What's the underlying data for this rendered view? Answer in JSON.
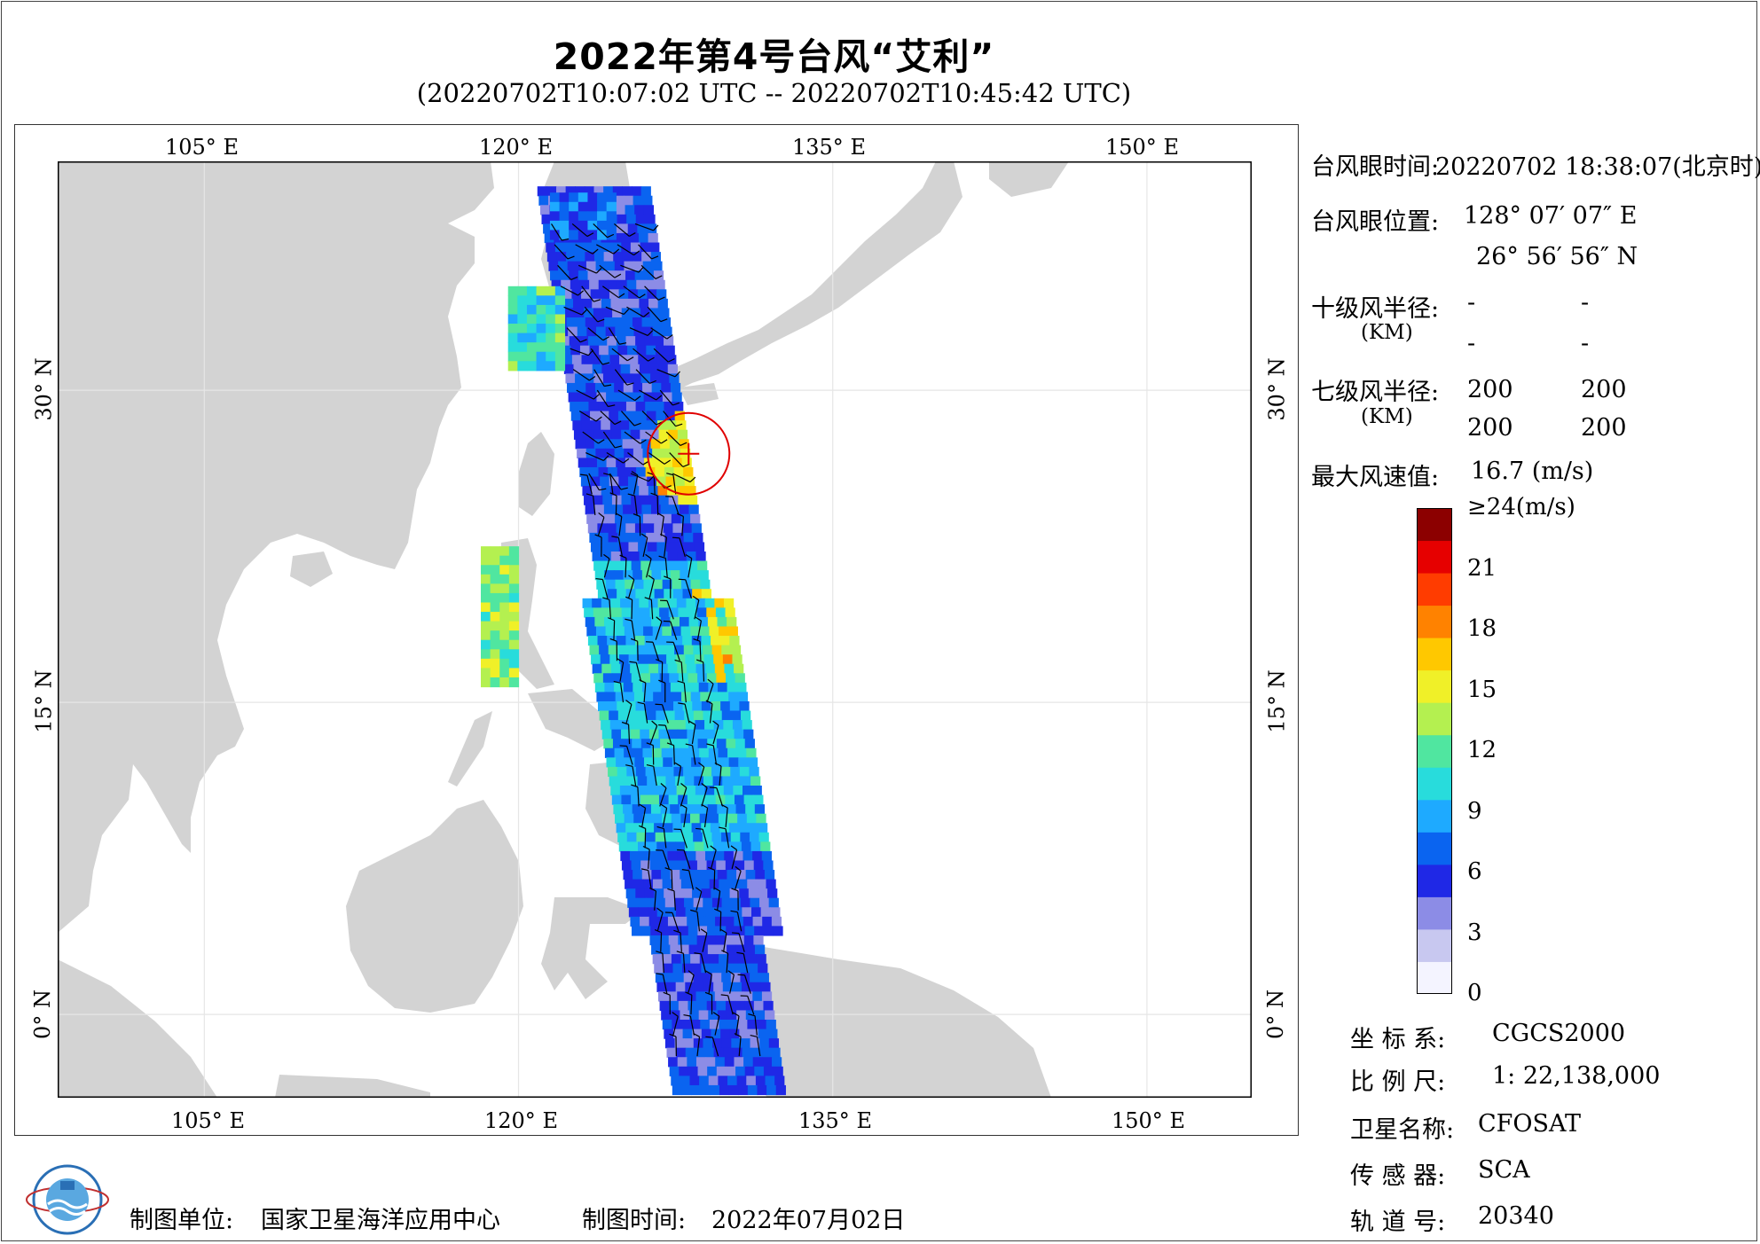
{
  "title": "2022年第4号台风“艾利”",
  "subtitle": "(20220702T10:07:02 UTC -- 20220702T10:45:42 UTC)",
  "map": {
    "lon_ticks": [
      "105° E",
      "120° E",
      "135° E",
      "150° E"
    ],
    "lat_ticks": [
      "30° N",
      "15° N",
      "0° N"
    ],
    "lon_range": [
      98,
      155
    ],
    "lat_range": [
      -4,
      41
    ],
    "colors": {
      "land": "#d3d3d3",
      "ocean": "#ffffff",
      "typhoon_marker": "#e00000"
    },
    "typhoon_eye": {
      "lon": 128.12,
      "lat": 26.95
    }
  },
  "info": {
    "eye_time_label": "台风眼时间:",
    "eye_time_value": "20220702 18:38:07(北京时)",
    "eye_pos_label": "台风眼位置:",
    "eye_lon": "128° 07′ 07″ E",
    "eye_lat": "26° 56′ 56″ N",
    "r10_label": "十级风半径:",
    "r10_unit": "(KM)",
    "r10_values": [
      "-",
      "-",
      "-",
      "-"
    ],
    "r7_label": "七级风半径:",
    "r7_unit": "(KM)",
    "r7_values": [
      "200",
      "200",
      "200",
      "200"
    ],
    "max_wind_label": "最大风速值:",
    "max_wind_value": "16.7  (m/s)"
  },
  "colorbar": {
    "labels": [
      "≥24(m/s)",
      "21",
      "18",
      "15",
      "12",
      "9",
      "6",
      "3",
      "0"
    ],
    "values": [
      24,
      21,
      18,
      15,
      12,
      9,
      6,
      3,
      0
    ],
    "colors": [
      "#f4f4ff",
      "#c8c8f0",
      "#8c8ce6",
      "#1f28e6",
      "#0a64f0",
      "#1eaaff",
      "#28dcdc",
      "#50e6a0",
      "#b4f050",
      "#f0f028",
      "#ffc800",
      "#ff8200",
      "#ff3c00",
      "#e60000",
      "#8c0000"
    ]
  },
  "meta": {
    "crs_label": "坐 标 系:",
    "crs_value": "CGCS2000",
    "scale_label": "比 例 尺:",
    "scale_value": "1: 22,138,000",
    "sat_label": "卫星名称:",
    "sat_value": "CFOSAT",
    "sensor_label": "传 感 器:",
    "sensor_value": "SCA",
    "orbit_label": "轨 道 号:",
    "orbit_value": "20340"
  },
  "footer": {
    "unit_label": "制图单位:",
    "unit_value": "国家卫星海洋应用中心",
    "time_label": "制图时间:",
    "time_value": "2022年07月02日"
  }
}
